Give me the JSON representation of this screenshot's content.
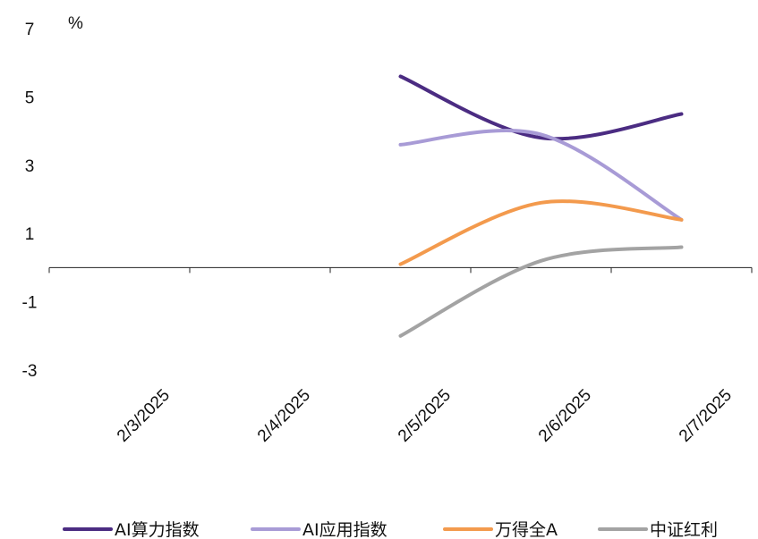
{
  "chart_data": {
    "type": "line",
    "title": "",
    "xlabel": "",
    "ylabel": "",
    "y_unit": "%",
    "ylim": [
      -3,
      7
    ],
    "y_ticks": [
      "7",
      "5",
      "3",
      "1",
      "-1",
      "-3"
    ],
    "y_tick_values": [
      7,
      5,
      3,
      1,
      -1,
      -3
    ],
    "categories": [
      "2/3/2025",
      "2/4/2025",
      "2/5/2025",
      "2/6/2025",
      "2/7/2025"
    ],
    "grid": false,
    "legend_position": "bottom",
    "smooth": true,
    "series": [
      {
        "name": "AI算力指数",
        "color": "#4b2c82",
        "values": [
          null,
          null,
          5.6,
          3.8,
          4.5
        ]
      },
      {
        "name": "AI应用指数",
        "color": "#a89bd6",
        "values": [
          null,
          null,
          3.6,
          3.9,
          1.4
        ]
      },
      {
        "name": "万得全A",
        "color": "#f39a4d",
        "values": [
          null,
          null,
          0.1,
          1.9,
          1.4
        ]
      },
      {
        "name": "中证红利",
        "color": "#a3a3a3",
        "values": [
          null,
          null,
          -2.0,
          0.2,
          0.6
        ]
      }
    ]
  }
}
